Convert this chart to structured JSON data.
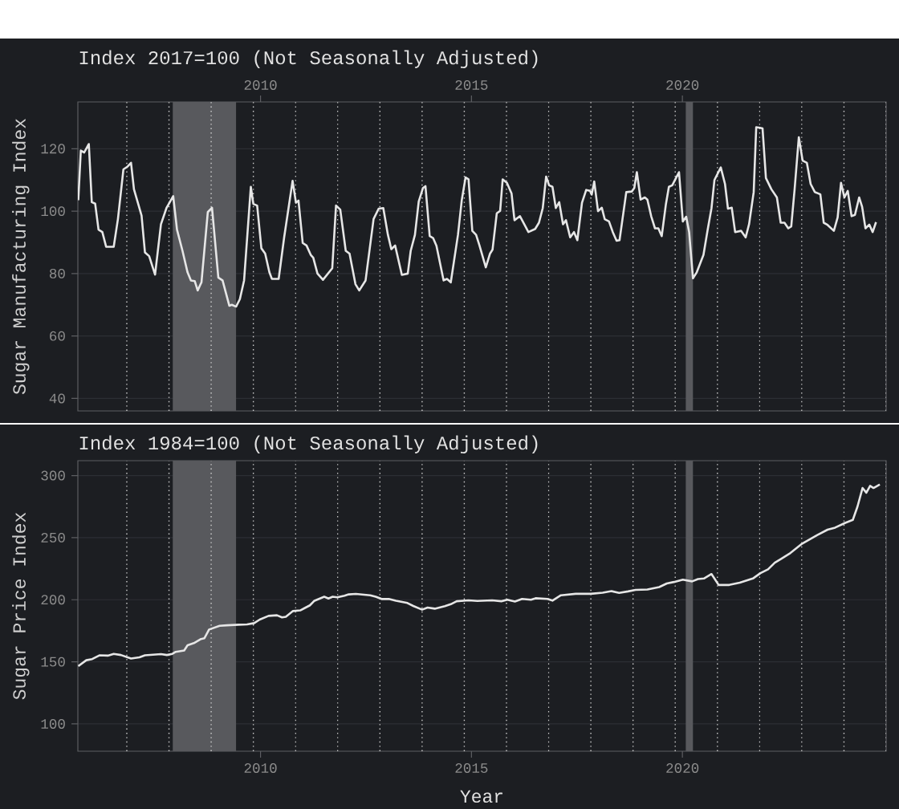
{
  "chart_data": [
    {
      "type": "line",
      "title": "Index 2017=100 (Not Seasonally Adjusted)",
      "ylabel": "Sugar Manufacturing Index",
      "color": "#e6e6e6",
      "xlim": [
        2005.67,
        2024.83
      ],
      "xticks": [
        2010,
        2015,
        2020
      ],
      "ylim": [
        36,
        135
      ],
      "yticks": [
        40,
        60,
        80,
        100,
        120
      ],
      "grid": "y",
      "x": [
        2005.68,
        2005.74,
        2005.82,
        2005.86,
        2005.93,
        2006.0,
        2006.08,
        2006.16,
        2006.25,
        2006.34,
        2006.52,
        2006.62,
        2006.75,
        2006.85,
        2006.93,
        2007.0,
        2007.18,
        2007.26,
        2007.36,
        2007.5,
        2007.64,
        2007.77,
        2007.93,
        2008.02,
        2008.15,
        2008.27,
        2008.35,
        2008.44,
        2008.51,
        2008.6,
        2008.75,
        2008.85,
        2009.0,
        2009.1,
        2009.26,
        2009.32,
        2009.42,
        2009.51,
        2009.61,
        2009.77,
        2009.83,
        2009.92,
        2010.02,
        2010.11,
        2010.21,
        2010.27,
        2010.43,
        2010.56,
        2010.76,
        2010.84,
        2010.9,
        2011.0,
        2011.09,
        2011.19,
        2011.25,
        2011.35,
        2011.48,
        2011.7,
        2011.79,
        2011.89,
        2012.02,
        2012.11,
        2012.25,
        2012.34,
        2012.49,
        2012.68,
        2012.8,
        2012.91,
        2013.02,
        2013.1,
        2013.19,
        2013.35,
        2013.49,
        2013.56,
        2013.66,
        2013.75,
        2013.85,
        2013.91,
        2014.01,
        2014.09,
        2014.17,
        2014.34,
        2014.42,
        2014.51,
        2014.68,
        2014.77,
        2014.86,
        2014.93,
        2015.02,
        2015.11,
        2015.19,
        2015.34,
        2015.44,
        2015.5,
        2015.6,
        2015.68,
        2015.74,
        2015.84,
        2015.95,
        2016.02,
        2016.15,
        2016.35,
        2016.51,
        2016.6,
        2016.69,
        2016.77,
        2016.84,
        2016.92,
        2017.0,
        2017.08,
        2017.17,
        2017.24,
        2017.34,
        2017.43,
        2017.51,
        2017.62,
        2017.72,
        2017.81,
        2017.85,
        2017.91,
        2018.0,
        2018.09,
        2018.16,
        2018.26,
        2018.35,
        2018.44,
        2018.51,
        2018.67,
        2018.8,
        2018.86,
        2018.92,
        2019.01,
        2019.11,
        2019.17,
        2019.26,
        2019.35,
        2019.43,
        2019.51,
        2019.61,
        2019.68,
        2019.76,
        2019.84,
        2019.92,
        2020.01,
        2020.09,
        2020.16,
        2020.25,
        2020.34,
        2020.5,
        2020.6,
        2020.69,
        2020.76,
        2020.91,
        2021.01,
        2021.08,
        2021.17,
        2021.25,
        2021.39,
        2021.5,
        2021.58,
        2021.69,
        2021.75,
        2021.84,
        2021.9,
        2021.98,
        2022.11,
        2022.24,
        2022.33,
        2022.42,
        2022.51,
        2022.58,
        2022.66,
        2022.76,
        2022.85,
        2022.95,
        2023.04,
        2023.14,
        2023.27,
        2023.35,
        2023.43,
        2023.59,
        2023.68,
        2023.76,
        2023.84,
        2023.92,
        2024.01,
        2024.09,
        2024.19,
        2024.26,
        2024.34,
        2024.43,
        2024.51,
        2024.59
      ],
      "values": [
        103.5,
        119.4,
        118.8,
        119.8,
        121.5,
        102.9,
        102.4,
        94.1,
        93.3,
        88.6,
        88.6,
        97.5,
        113.4,
        114.3,
        115.5,
        107,
        98.6,
        86.8,
        85.6,
        79.7,
        95.8,
        101,
        104.8,
        94.1,
        87.3,
        80.4,
        77.8,
        77.6,
        74.6,
        77.2,
        99.7,
        101.1,
        78.7,
        77.8,
        69.7,
        70,
        69.4,
        71.8,
        77.8,
        107.8,
        102.3,
        101.8,
        88.1,
        86.4,
        80.4,
        78.3,
        78.3,
        91.6,
        109.7,
        102.7,
        103.4,
        89.8,
        89,
        86,
        85.1,
        80,
        78,
        81.7,
        101.8,
        100.5,
        87.3,
        86.4,
        76.6,
        74.6,
        77.8,
        97.5,
        100.8,
        101,
        92.4,
        87.8,
        89,
        79.6,
        80,
        87.3,
        92.4,
        103.1,
        107.4,
        108,
        92,
        91.4,
        88.9,
        77.8,
        78.3,
        77.2,
        92.4,
        103.5,
        110.8,
        110.2,
        93.7,
        92.4,
        89,
        82,
        86.4,
        87.7,
        99.3,
        100.1,
        110.2,
        109.1,
        105.7,
        97.1,
        98.4,
        93.3,
        94.3,
        96.3,
        101,
        111.1,
        108.3,
        107.8,
        101,
        102.9,
        95.8,
        97.1,
        91.6,
        93.3,
        90.7,
        102.7,
        106.8,
        106.5,
        105.3,
        109.5,
        100,
        101.1,
        97.4,
        96.7,
        93.3,
        90.5,
        90.7,
        106.1,
        106.3,
        107.4,
        112.5,
        103.7,
        104.4,
        103.7,
        98.4,
        94.5,
        94.5,
        92,
        102.3,
        107.8,
        108.3,
        110.4,
        112.5,
        96.7,
        98.2,
        93.3,
        78.5,
        80.4,
        86,
        94.1,
        101,
        110,
        114,
        108.7,
        100.8,
        101.1,
        93.3,
        93.7,
        91.6,
        95.8,
        106.1,
        126.9,
        126.7,
        126.5,
        110.6,
        107,
        104.4,
        96.3,
        96.3,
        94.5,
        95.1,
        107,
        123.7,
        116.2,
        115.5,
        108.7,
        106.1,
        105.4,
        96.3,
        95.7,
        93.7,
        98,
        109.1,
        104.4,
        106.5,
        98.4,
        98.8,
        104.4,
        101.4,
        94.5,
        95.7,
        93.3,
        96.5
      ],
      "bands": [
        {
          "axis": "x",
          "from": 2007.92,
          "to": 2009.42,
          "color": "#58595d"
        },
        {
          "axis": "x",
          "from": 2020.08,
          "to": 2020.25,
          "color": "#58595d"
        }
      ],
      "ref_lines": [
        {
          "axis": "x",
          "value": 2006.83,
          "color": "#d0d0d0",
          "line_style": "dotted"
        },
        {
          "axis": "x",
          "value": 2007.83,
          "color": "#d0d0d0",
          "line_style": "dotted"
        },
        {
          "axis": "x",
          "value": 2008.83,
          "color": "#d0d0d0",
          "line_style": "dotted"
        },
        {
          "axis": "x",
          "value": 2009.83,
          "color": "#d0d0d0",
          "line_style": "dotted"
        },
        {
          "axis": "x",
          "value": 2010.83,
          "color": "#d0d0d0",
          "line_style": "dotted"
        },
        {
          "axis": "x",
          "value": 2011.83,
          "color": "#d0d0d0",
          "line_style": "dotted"
        },
        {
          "axis": "x",
          "value": 2012.83,
          "color": "#d0d0d0",
          "line_style": "dotted"
        },
        {
          "axis": "x",
          "value": 2013.83,
          "color": "#d0d0d0",
          "line_style": "dotted"
        },
        {
          "axis": "x",
          "value": 2014.83,
          "color": "#d0d0d0",
          "line_style": "dotted"
        },
        {
          "axis": "x",
          "value": 2015.83,
          "color": "#d0d0d0",
          "line_style": "dotted"
        },
        {
          "axis": "x",
          "value": 2016.83,
          "color": "#d0d0d0",
          "line_style": "dotted"
        },
        {
          "axis": "x",
          "value": 2017.83,
          "color": "#d0d0d0",
          "line_style": "dotted"
        },
        {
          "axis": "x",
          "value": 2018.83,
          "color": "#d0d0d0",
          "line_style": "dotted"
        },
        {
          "axis": "x",
          "value": 2019.83,
          "color": "#d0d0d0",
          "line_style": "dotted"
        },
        {
          "axis": "x",
          "value": 2020.83,
          "color": "#d0d0d0",
          "line_style": "dotted"
        },
        {
          "axis": "x",
          "value": 2021.83,
          "color": "#d0d0d0",
          "line_style": "dotted"
        },
        {
          "axis": "x",
          "value": 2022.83,
          "color": "#d0d0d0",
          "line_style": "dotted"
        },
        {
          "axis": "x",
          "value": 2023.83,
          "color": "#d0d0d0",
          "line_style": "dotted"
        },
        {
          "axis": "x",
          "value": 2024.83,
          "color": "#d0d0d0",
          "line_style": "dotted"
        }
      ]
    },
    {
      "type": "line",
      "title": "Index 1984=100 (Not Seasonally Adjusted)",
      "xlabel": "Year",
      "ylabel": "Sugar Price Index",
      "color": "#e6e6e6",
      "xlim": [
        2005.67,
        2024.83
      ],
      "xticks": [
        2010,
        2015,
        2020
      ],
      "ylim": [
        78,
        312
      ],
      "yticks": [
        100,
        150,
        200,
        250,
        300
      ],
      "grid": "y",
      "x": [
        2005.68,
        2005.87,
        2006.01,
        2006.18,
        2006.38,
        2006.52,
        2006.69,
        2006.93,
        2007.13,
        2007.26,
        2007.64,
        2007.78,
        2007.91,
        2007.99,
        2008.19,
        2008.27,
        2008.42,
        2008.59,
        2008.67,
        2008.78,
        2009.03,
        2009.2,
        2009.48,
        2009.68,
        2009.85,
        2009.98,
        2010.19,
        2010.39,
        2010.51,
        2010.6,
        2010.77,
        2010.94,
        2011.07,
        2011.17,
        2011.27,
        2011.51,
        2011.61,
        2011.71,
        2011.82,
        2011.99,
        2012.09,
        2012.26,
        2012.6,
        2012.73,
        2012.87,
        2013.04,
        2013.21,
        2013.48,
        2013.62,
        2013.83,
        2013.96,
        2014.13,
        2014.37,
        2014.51,
        2014.65,
        2014.93,
        2015.14,
        2015.49,
        2015.71,
        2015.85,
        2016.03,
        2016.2,
        2016.41,
        2016.52,
        2016.8,
        2016.92,
        2017.12,
        2017.47,
        2017.83,
        2018.11,
        2018.32,
        2018.5,
        2018.71,
        2018.89,
        2019.17,
        2019.45,
        2019.63,
        2019.8,
        2020.01,
        2020.23,
        2020.37,
        2020.51,
        2020.69,
        2020.86,
        2021.11,
        2021.36,
        2021.67,
        2021.85,
        2022.03,
        2022.19,
        2022.34,
        2022.56,
        2022.84,
        2023.19,
        2023.44,
        2023.62,
        2023.86,
        2024.04,
        2024.15,
        2024.27,
        2024.36,
        2024.45,
        2024.53,
        2024.68
      ],
      "values": [
        146.5,
        151.3,
        152.2,
        155.2,
        155,
        156.4,
        155.5,
        152.7,
        153.6,
        155.2,
        156.2,
        155.5,
        156.4,
        158,
        159.1,
        163.3,
        165.1,
        168.4,
        169,
        176,
        179,
        179.4,
        179.9,
        180.1,
        181.2,
        184,
        187,
        187.5,
        185.8,
        186.3,
        190.9,
        191.4,
        193.7,
        195.5,
        199,
        202.4,
        201,
        202.4,
        202,
        203.3,
        204.3,
        204.7,
        203.6,
        202.4,
        200.6,
        200.6,
        199.2,
        197.4,
        195,
        192,
        193.7,
        192.8,
        194.8,
        196.4,
        198.8,
        199.5,
        199,
        199.5,
        198.8,
        200,
        198.6,
        200.7,
        200,
        201.2,
        200.7,
        199.3,
        203.6,
        204.8,
        204.8,
        205.7,
        206.9,
        205.5,
        206.7,
        207.9,
        208.3,
        210.2,
        213.1,
        214.3,
        216.2,
        214.8,
        216.7,
        217.1,
        220.7,
        211.9,
        211.9,
        213.8,
        217.1,
        221.4,
        224.5,
        229.8,
        232.9,
        237.6,
        245.2,
        251.9,
        256.4,
        258.1,
        261.9,
        264.3,
        275,
        290,
        286.2,
        291.7,
        290,
        292.9
      ],
      "bands": [
        {
          "axis": "x",
          "from": 2007.92,
          "to": 2009.42,
          "color": "#58595d"
        },
        {
          "axis": "x",
          "from": 2020.08,
          "to": 2020.25,
          "color": "#58595d"
        }
      ],
      "ref_lines": [
        {
          "axis": "x",
          "value": 2006.83,
          "color": "#d0d0d0",
          "line_style": "dotted"
        },
        {
          "axis": "x",
          "value": 2007.83,
          "color": "#d0d0d0",
          "line_style": "dotted"
        },
        {
          "axis": "x",
          "value": 2008.83,
          "color": "#d0d0d0",
          "line_style": "dotted"
        },
        {
          "axis": "x",
          "value": 2009.83,
          "color": "#d0d0d0",
          "line_style": "dotted"
        },
        {
          "axis": "x",
          "value": 2010.83,
          "color": "#d0d0d0",
          "line_style": "dotted"
        },
        {
          "axis": "x",
          "value": 2011.83,
          "color": "#d0d0d0",
          "line_style": "dotted"
        },
        {
          "axis": "x",
          "value": 2012.83,
          "color": "#d0d0d0",
          "line_style": "dotted"
        },
        {
          "axis": "x",
          "value": 2013.83,
          "color": "#d0d0d0",
          "line_style": "dotted"
        },
        {
          "axis": "x",
          "value": 2014.83,
          "color": "#d0d0d0",
          "line_style": "dotted"
        },
        {
          "axis": "x",
          "value": 2015.83,
          "color": "#d0d0d0",
          "line_style": "dotted"
        },
        {
          "axis": "x",
          "value": 2016.83,
          "color": "#d0d0d0",
          "line_style": "dotted"
        },
        {
          "axis": "x",
          "value": 2017.83,
          "color": "#d0d0d0",
          "line_style": "dotted"
        },
        {
          "axis": "x",
          "value": 2018.83,
          "color": "#d0d0d0",
          "line_style": "dotted"
        },
        {
          "axis": "x",
          "value": 2019.83,
          "color": "#d0d0d0",
          "line_style": "dotted"
        },
        {
          "axis": "x",
          "value": 2020.83,
          "color": "#d0d0d0",
          "line_style": "dotted"
        },
        {
          "axis": "x",
          "value": 2021.83,
          "color": "#d0d0d0",
          "line_style": "dotted"
        },
        {
          "axis": "x",
          "value": 2022.83,
          "color": "#d0d0d0",
          "line_style": "dotted"
        },
        {
          "axis": "x",
          "value": 2023.83,
          "color": "#d0d0d0",
          "line_style": "dotted"
        },
        {
          "axis": "x",
          "value": 2024.83,
          "color": "#d0d0d0",
          "line_style": "dotted"
        }
      ]
    }
  ]
}
